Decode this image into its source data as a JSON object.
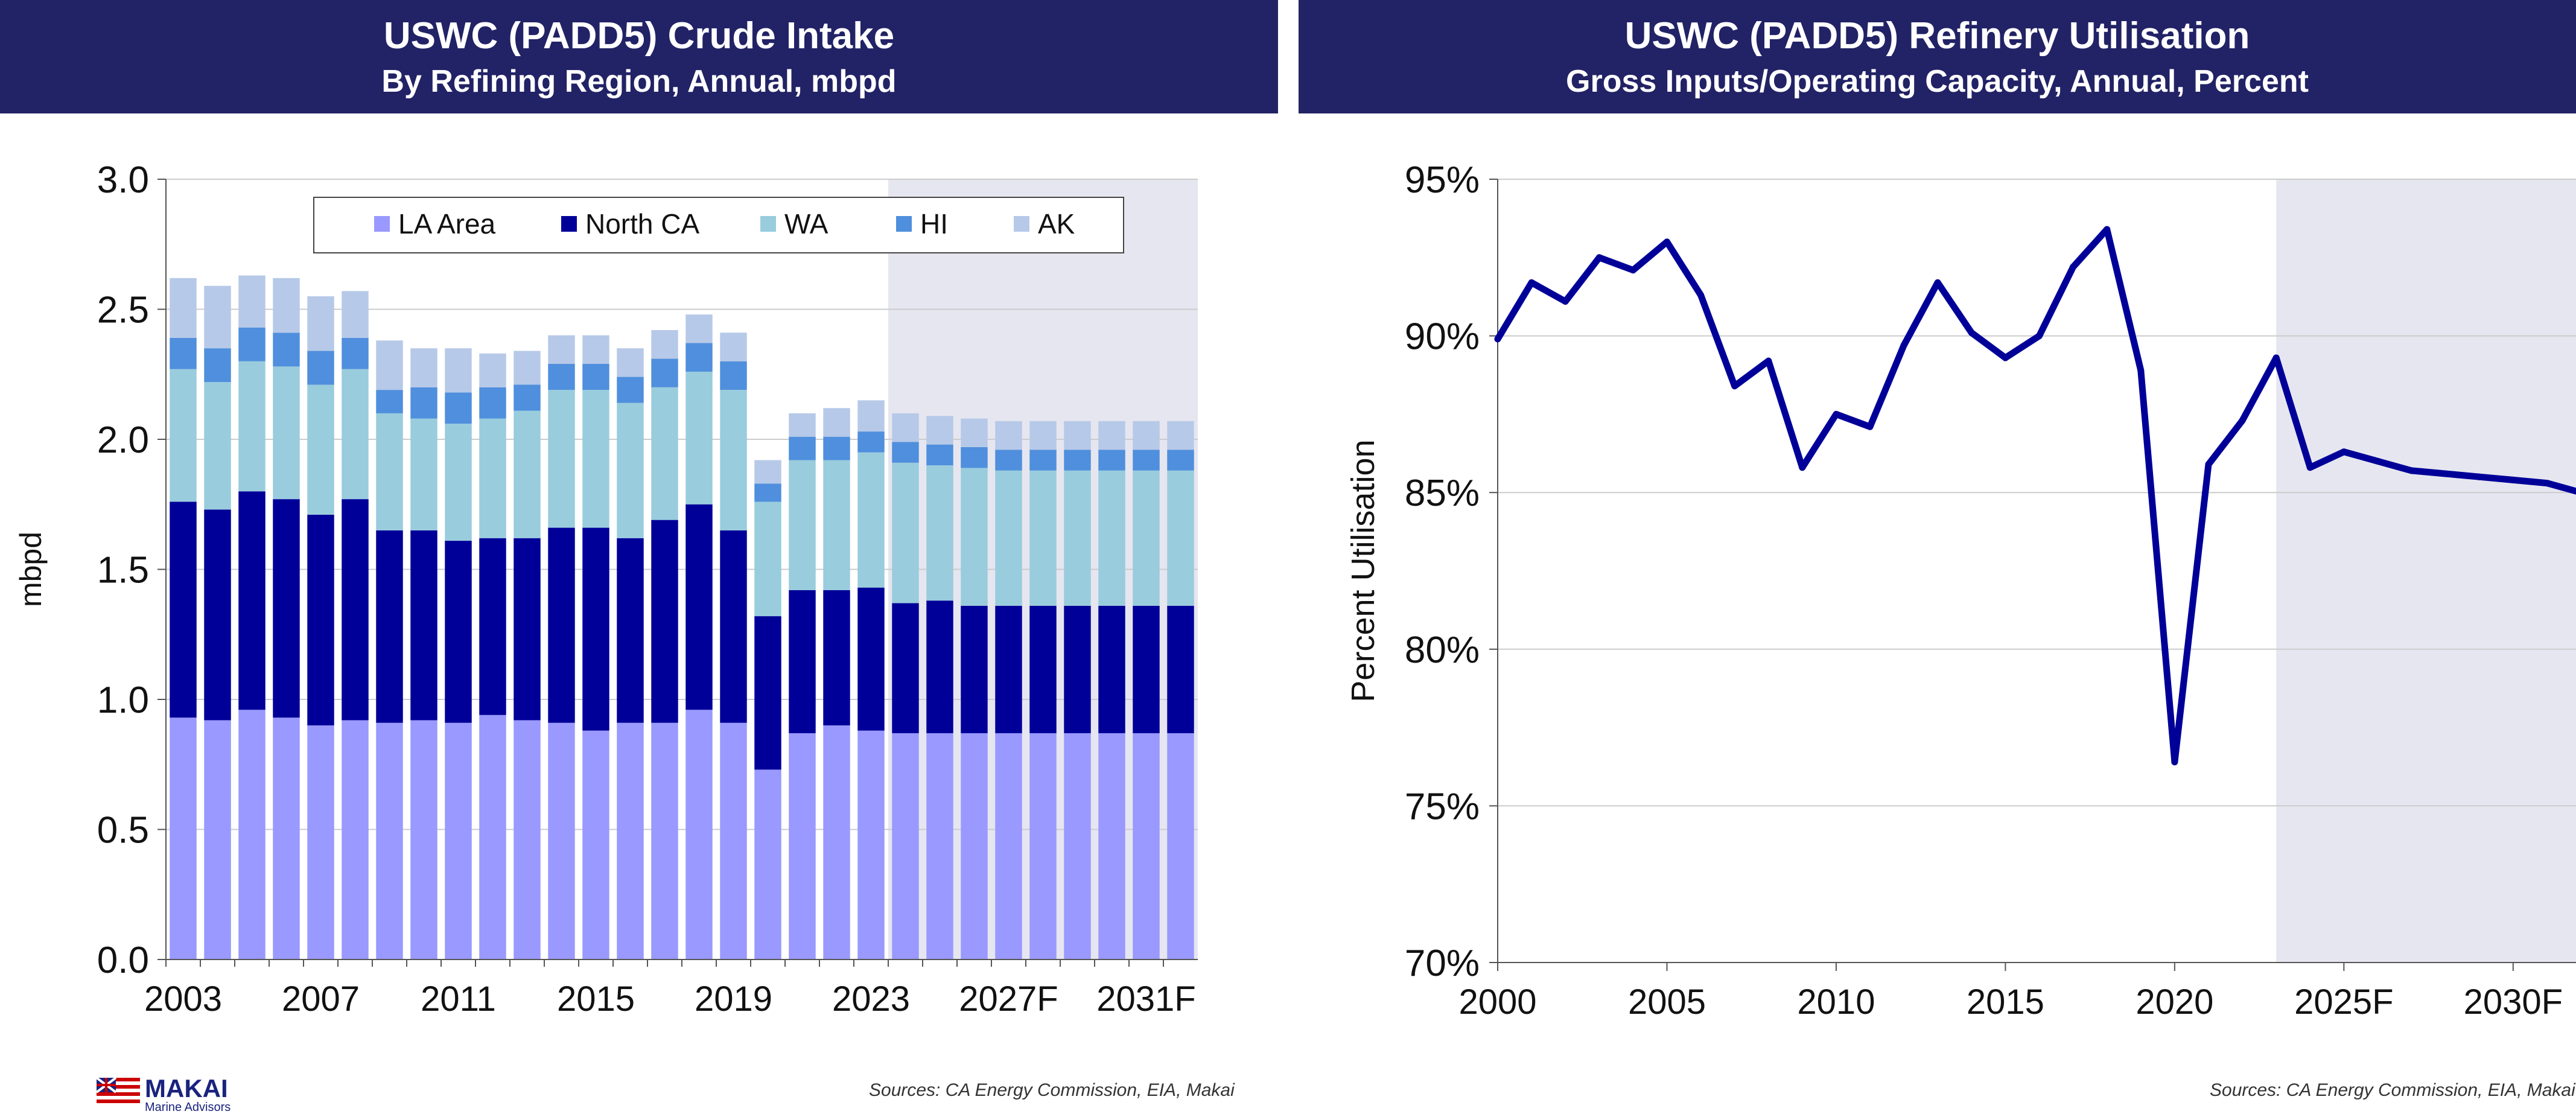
{
  "left_chart": {
    "title": "USWC (PADD5) Crude Intake",
    "subtitle": "By Refining Region, Annual, mbpd",
    "source": "Sources: CA Energy Commission, EIA, Makai"
  },
  "right_chart": {
    "title": "USWC (PADD5) Refinery Utilisation",
    "subtitle": "Gross Inputs/Operating Capacity, Annual, Percent",
    "source": "Sources: CA Energy Commission, EIA, Makai"
  },
  "logo": {
    "name": "MAKAI",
    "tagline": "Marine Advisors"
  },
  "colors": {
    "la_area": "#9999ff",
    "north_ca": "#000099",
    "wa": "#99ccdd",
    "hi": "#4f8fdd",
    "ak": "#b7c9e8",
    "forecast_shade": "#e6e6f0",
    "line": "#000099",
    "header_bg": "#222266"
  },
  "chart_data": [
    {
      "type": "bar",
      "stacked": true,
      "categories": [
        "2003",
        "2004",
        "2005",
        "2006",
        "2007",
        "2008",
        "2009",
        "2010",
        "2011",
        "2012",
        "2013",
        "2014",
        "2015",
        "2016",
        "2017",
        "2018",
        "2019",
        "2020",
        "2021",
        "2022",
        "2023",
        "2024",
        "2025",
        "2026",
        "2027F",
        "2028",
        "2029",
        "2030",
        "2031F",
        "2032"
      ],
      "tick_labels": [
        "2003",
        "2007",
        "2011",
        "2015",
        "2019",
        "2023",
        "2027F",
        "2031F"
      ],
      "ylabel": "mbpd",
      "ylim": [
        0,
        3.0
      ],
      "yticks": [
        "0.0",
        "0.5",
        "1.0",
        "1.5",
        "2.0",
        "2.5",
        "3.0"
      ],
      "forecast_start": "2024",
      "legend_position": "top-center",
      "series": [
        {
          "name": "LA Area",
          "values": [
            0.93,
            0.92,
            0.96,
            0.93,
            0.9,
            0.92,
            0.91,
            0.92,
            0.91,
            0.94,
            0.92,
            0.91,
            0.88,
            0.91,
            0.91,
            0.96,
            0.91,
            0.73,
            0.87,
            0.9,
            0.88,
            0.87,
            0.87,
            0.87,
            0.87,
            0.87,
            0.87,
            0.87,
            0.87,
            0.87
          ]
        },
        {
          "name": "North CA",
          "values": [
            0.83,
            0.81,
            0.84,
            0.84,
            0.81,
            0.85,
            0.74,
            0.73,
            0.7,
            0.68,
            0.7,
            0.75,
            0.78,
            0.71,
            0.78,
            0.79,
            0.74,
            0.59,
            0.55,
            0.52,
            0.55,
            0.5,
            0.51,
            0.49,
            0.49,
            0.49,
            0.49,
            0.49,
            0.49,
            0.49
          ]
        },
        {
          "name": "WA",
          "values": [
            0.51,
            0.49,
            0.5,
            0.51,
            0.5,
            0.5,
            0.45,
            0.43,
            0.45,
            0.46,
            0.49,
            0.53,
            0.53,
            0.52,
            0.51,
            0.51,
            0.54,
            0.44,
            0.5,
            0.5,
            0.52,
            0.54,
            0.52,
            0.53,
            0.52,
            0.52,
            0.52,
            0.52,
            0.52,
            0.52
          ]
        },
        {
          "name": "HI",
          "values": [
            0.12,
            0.13,
            0.13,
            0.13,
            0.13,
            0.12,
            0.09,
            0.12,
            0.12,
            0.12,
            0.1,
            0.1,
            0.1,
            0.1,
            0.11,
            0.11,
            0.11,
            0.07,
            0.09,
            0.09,
            0.08,
            0.08,
            0.08,
            0.08,
            0.08,
            0.08,
            0.08,
            0.08,
            0.08,
            0.08
          ]
        },
        {
          "name": "AK",
          "values": [
            0.23,
            0.24,
            0.2,
            0.21,
            0.21,
            0.18,
            0.19,
            0.15,
            0.17,
            0.13,
            0.13,
            0.11,
            0.11,
            0.11,
            0.11,
            0.11,
            0.11,
            0.09,
            0.09,
            0.11,
            0.12,
            0.11,
            0.11,
            0.11,
            0.11,
            0.11,
            0.11,
            0.11,
            0.11,
            0.11
          ]
        }
      ]
    },
    {
      "type": "line",
      "x": [
        2000,
        2001,
        2002,
        2003,
        2004,
        2005,
        2006,
        2007,
        2008,
        2009,
        2010,
        2011,
        2012,
        2013,
        2014,
        2015,
        2016,
        2017,
        2018,
        2019,
        2020,
        2021,
        2022,
        2023,
        2024,
        2025,
        2026,
        2027,
        2028,
        2029,
        2030,
        2031,
        2032
      ],
      "tick_labels": [
        "2000",
        "2005",
        "2010",
        "2015",
        "2020",
        "2025F",
        "2030F"
      ],
      "ylabel": "Percent Utilisation",
      "ylim": [
        70,
        95
      ],
      "yticks": [
        "70%",
        "75%",
        "80%",
        "85%",
        "90%",
        "95%"
      ],
      "forecast_start": 2023,
      "series": [
        {
          "values": [
            89.9,
            91.7,
            91.1,
            92.5,
            92.1,
            93.0,
            91.3,
            88.4,
            89.2,
            85.8,
            87.5,
            87.1,
            89.7,
            91.7,
            90.1,
            89.3,
            90.0,
            92.2,
            93.4,
            88.9,
            76.4,
            85.9,
            87.3,
            89.3,
            85.8,
            86.3,
            86.0,
            85.7,
            85.6,
            85.5,
            85.4,
            85.3,
            85.0
          ]
        }
      ]
    }
  ]
}
